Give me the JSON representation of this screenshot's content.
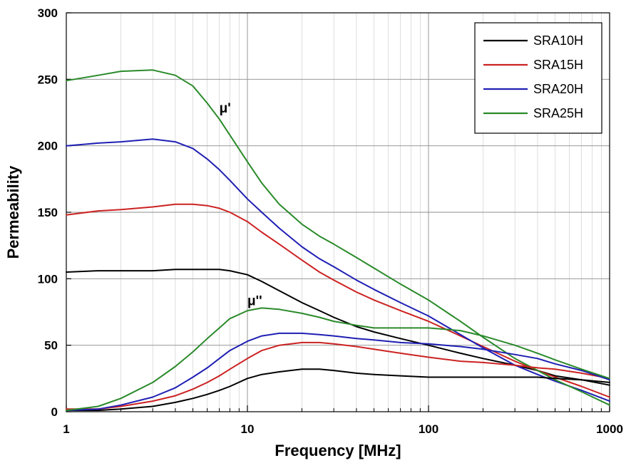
{
  "chart_data": {
    "type": "line",
    "title": "",
    "xlabel": "Frequency [MHz]",
    "ylabel": "Permeability",
    "x_scale": "log",
    "xlim": [
      1,
      1000
    ],
    "ylim": [
      0,
      300
    ],
    "x_ticks": [
      "1",
      "10",
      "100",
      "1000"
    ],
    "y_ticks": [
      "0",
      "50",
      "100",
      "150",
      "200",
      "250",
      "300"
    ],
    "grid": true,
    "legend_position": "top-right",
    "annotations": [
      {
        "text": "μ'",
        "x": 7,
        "y": 225
      },
      {
        "text": "μ''",
        "x": 10,
        "y": 80
      }
    ],
    "series": [
      {
        "name": "SRA10H",
        "component": "μ'",
        "color": "#000000",
        "x": [
          1,
          1.5,
          2,
          3,
          4,
          5,
          6,
          7,
          8,
          10,
          12,
          15,
          20,
          25,
          30,
          40,
          50,
          70,
          100,
          150,
          200,
          300,
          400,
          500,
          700,
          1000
        ],
        "y": [
          105,
          106,
          106,
          106,
          107,
          107,
          107,
          107,
          106,
          103,
          98,
          91,
          82,
          76,
          71,
          64,
          60,
          55,
          50,
          44,
          40,
          35,
          31,
          27,
          24,
          20
        ]
      },
      {
        "name": "SRA15H",
        "component": "μ'",
        "color": "#cc2222",
        "x": [
          1,
          1.5,
          2,
          3,
          4,
          5,
          6,
          7,
          8,
          10,
          12,
          15,
          20,
          25,
          30,
          40,
          50,
          70,
          100,
          150,
          200,
          300,
          400,
          500,
          700,
          1000
        ],
        "y": [
          148,
          151,
          152,
          154,
          156,
          156,
          155,
          153,
          150,
          143,
          135,
          126,
          114,
          105,
          99,
          90,
          84,
          76,
          68,
          57,
          49,
          38,
          31,
          26,
          19,
          11
        ]
      },
      {
        "name": "SRA20H",
        "component": "μ'",
        "color": "#1f1fb4",
        "x": [
          1,
          1.5,
          2,
          3,
          4,
          5,
          6,
          7,
          8,
          10,
          12,
          15,
          20,
          25,
          30,
          40,
          50,
          70,
          100,
          150,
          200,
          300,
          400,
          500,
          700,
          1000
        ],
        "y": [
          200,
          202,
          203,
          205,
          203,
          198,
          190,
          182,
          174,
          160,
          150,
          138,
          124,
          115,
          109,
          99,
          92,
          82,
          72,
          58,
          48,
          35,
          28,
          23,
          16,
          8
        ]
      },
      {
        "name": "SRA25H",
        "component": "μ'",
        "color": "#2a8a2a",
        "x": [
          1,
          1.5,
          2,
          3,
          4,
          5,
          6,
          7,
          8,
          10,
          12,
          15,
          20,
          25,
          30,
          40,
          50,
          70,
          100,
          150,
          200,
          300,
          400,
          500,
          700,
          1000
        ],
        "y": [
          249,
          253,
          256,
          257,
          253,
          245,
          232,
          220,
          208,
          188,
          172,
          156,
          141,
          132,
          126,
          116,
          108,
          96,
          84,
          68,
          56,
          40,
          31,
          24,
          15,
          5
        ]
      },
      {
        "name": "SRA10H",
        "component": "μ''",
        "color": "#000000",
        "x": [
          1,
          1.5,
          2,
          3,
          4,
          5,
          6,
          7,
          8,
          10,
          12,
          15,
          20,
          25,
          30,
          40,
          50,
          70,
          100,
          150,
          200,
          300,
          400,
          500,
          700,
          1000
        ],
        "y": [
          1,
          1,
          2,
          4,
          7,
          10,
          13,
          16,
          19,
          25,
          28,
          30,
          32,
          32,
          31,
          29,
          28,
          27,
          26,
          26,
          26,
          26,
          26,
          25,
          24,
          22
        ]
      },
      {
        "name": "SRA15H",
        "component": "μ''",
        "color": "#cc2222",
        "x": [
          1,
          1.5,
          2,
          3,
          4,
          5,
          6,
          7,
          8,
          10,
          12,
          15,
          20,
          25,
          30,
          40,
          50,
          70,
          100,
          150,
          200,
          300,
          400,
          500,
          700,
          1000
        ],
        "y": [
          2,
          2,
          4,
          8,
          12,
          17,
          22,
          27,
          32,
          40,
          46,
          50,
          52,
          52,
          51,
          49,
          47,
          44,
          41,
          38,
          37,
          35,
          33,
          32,
          29,
          25
        ]
      },
      {
        "name": "SRA20H",
        "component": "μ''",
        "color": "#1f1fb4",
        "x": [
          1,
          1.5,
          2,
          3,
          4,
          5,
          6,
          7,
          8,
          10,
          12,
          15,
          20,
          25,
          30,
          40,
          50,
          70,
          100,
          150,
          200,
          300,
          400,
          500,
          700,
          1000
        ],
        "y": [
          1,
          2,
          5,
          11,
          18,
          26,
          33,
          40,
          46,
          53,
          57,
          59,
          59,
          58,
          57,
          55,
          54,
          52,
          51,
          49,
          47,
          43,
          40,
          36,
          31,
          24
        ]
      },
      {
        "name": "SRA25H",
        "component": "μ''",
        "color": "#2a8a2a",
        "x": [
          1,
          1.5,
          2,
          3,
          4,
          5,
          6,
          7,
          8,
          10,
          12,
          15,
          20,
          25,
          30,
          40,
          50,
          70,
          100,
          150,
          200,
          300,
          400,
          500,
          700,
          1000
        ],
        "y": [
          1,
          4,
          10,
          22,
          34,
          45,
          55,
          63,
          70,
          76,
          78,
          77,
          74,
          71,
          68,
          65,
          63,
          63,
          63,
          61,
          57,
          50,
          44,
          39,
          32,
          25
        ]
      }
    ],
    "legend": [
      "SRA10H",
      "SRA15H",
      "SRA20H",
      "SRA25H"
    ]
  }
}
